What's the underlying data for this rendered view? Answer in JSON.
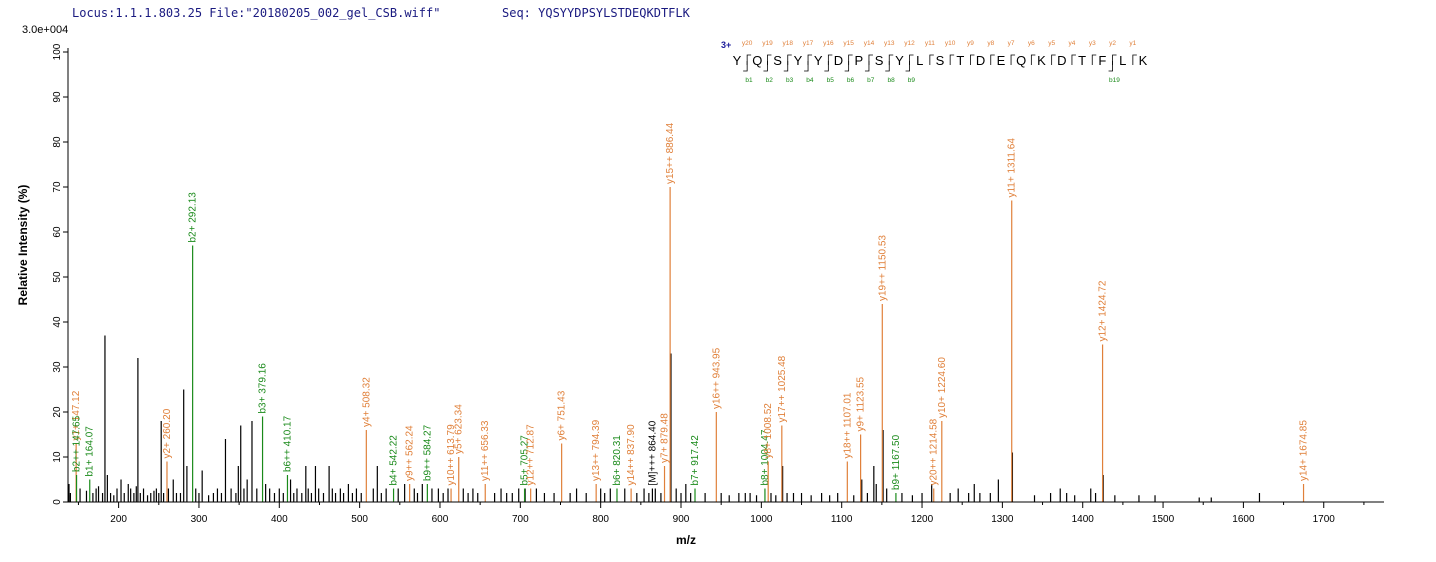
{
  "header": {
    "locus": "Locus:1.1.1.803.25 File:\"20180205_002_gel_CSB.wiff\"",
    "sequence_label": "Seq: YQSYYDPSYLSTDEQKDTFLK",
    "scale": "3.0e+004"
  },
  "colors": {
    "y_ion": "#e0803a",
    "b_ion": "#1a8a1a",
    "other": "#000000",
    "header": "#1a1a80",
    "charge": "#1a1a9a"
  },
  "chart_data": {
    "type": "bar",
    "xlabel": "m/z",
    "ylabel": "Relative   Intensity (%)",
    "xlim": [
      137,
      1775
    ],
    "ylim": [
      0,
      100
    ],
    "x_ticks": [
      200,
      300,
      400,
      500,
      600,
      700,
      800,
      900,
      1000,
      1100,
      1200,
      1300,
      1400,
      1500,
      1600,
      1700
    ],
    "y_ticks": [
      0,
      10,
      20,
      30,
      40,
      50,
      60,
      70,
      80,
      90,
      100
    ],
    "peptide": {
      "charge": "3+",
      "residues": [
        "Y",
        "Q",
        "S",
        "Y",
        "Y",
        "D",
        "P",
        "S",
        "Y",
        "L",
        "S",
        "T",
        "D",
        "E",
        "Q",
        "K",
        "D",
        "T",
        "F",
        "L",
        "K"
      ],
      "y_labels": [
        "y20",
        "y19",
        "y18",
        "y17",
        "y16",
        "y15",
        "y14",
        "y13",
        "y12",
        "y11",
        "y10",
        "y9",
        "y8",
        "y7",
        "y6",
        "y5",
        "y4",
        "y3",
        "y2",
        "y1"
      ],
      "b_labels": [
        "b1",
        "b2",
        "b3",
        "b4",
        "b5",
        "b6",
        "b7",
        "b8",
        "b9",
        "b19"
      ],
      "b_positions": [
        1,
        2,
        3,
        4,
        5,
        6,
        7,
        8,
        9,
        19
      ]
    },
    "peaks": [
      {
        "mz": 120,
        "i": 2
      },
      {
        "mz": 125,
        "i": 1.5
      },
      {
        "mz": 132,
        "i": 4
      },
      {
        "mz": 140,
        "i": 2
      },
      {
        "mz": 152,
        "i": 3
      },
      {
        "mz": 160,
        "i": 2.5
      },
      {
        "mz": 168,
        "i": 2
      },
      {
        "mz": 172,
        "i": 3
      },
      {
        "mz": 175,
        "i": 3.5
      },
      {
        "mz": 180,
        "i": 2
      },
      {
        "mz": 183,
        "i": 37
      },
      {
        "mz": 186,
        "i": 6
      },
      {
        "mz": 190,
        "i": 2
      },
      {
        "mz": 194,
        "i": 1.5
      },
      {
        "mz": 198,
        "i": 3
      },
      {
        "mz": 203,
        "i": 5
      },
      {
        "mz": 207,
        "i": 2
      },
      {
        "mz": 212,
        "i": 4
      },
      {
        "mz": 215,
        "i": 3
      },
      {
        "mz": 219,
        "i": 2
      },
      {
        "mz": 222,
        "i": 3.5
      },
      {
        "mz": 224,
        "i": 32
      },
      {
        "mz": 227,
        "i": 2
      },
      {
        "mz": 231,
        "i": 3
      },
      {
        "mz": 236,
        "i": 1.5
      },
      {
        "mz": 240,
        "i": 2
      },
      {
        "mz": 244,
        "i": 2.5
      },
      {
        "mz": 247,
        "i": 3
      },
      {
        "mz": 250,
        "i": 2
      },
      {
        "mz": 253,
        "i": 18
      },
      {
        "mz": 256,
        "i": 2
      },
      {
        "mz": 262,
        "i": 3
      },
      {
        "mz": 268,
        "i": 5
      },
      {
        "mz": 272,
        "i": 2
      },
      {
        "mz": 277,
        "i": 2
      },
      {
        "mz": 281,
        "i": 25
      },
      {
        "mz": 285,
        "i": 8
      },
      {
        "mz": 296,
        "i": 3
      },
      {
        "mz": 300,
        "i": 2
      },
      {
        "mz": 304,
        "i": 7
      },
      {
        "mz": 312,
        "i": 1.5
      },
      {
        "mz": 318,
        "i": 2
      },
      {
        "mz": 323,
        "i": 3
      },
      {
        "mz": 328,
        "i": 2
      },
      {
        "mz": 333,
        "i": 14
      },
      {
        "mz": 340,
        "i": 3
      },
      {
        "mz": 346,
        "i": 2
      },
      {
        "mz": 349,
        "i": 8
      },
      {
        "mz": 352,
        "i": 17
      },
      {
        "mz": 356,
        "i": 3
      },
      {
        "mz": 360,
        "i": 5
      },
      {
        "mz": 366,
        "i": 18
      },
      {
        "mz": 372,
        "i": 3
      },
      {
        "mz": 383,
        "i": 4
      },
      {
        "mz": 388,
        "i": 3
      },
      {
        "mz": 394,
        "i": 2
      },
      {
        "mz": 400,
        "i": 3
      },
      {
        "mz": 405,
        "i": 2
      },
      {
        "mz": 414,
        "i": 5
      },
      {
        "mz": 418,
        "i": 2
      },
      {
        "mz": 422,
        "i": 3
      },
      {
        "mz": 428,
        "i": 2
      },
      {
        "mz": 433,
        "i": 8
      },
      {
        "mz": 436,
        "i": 3
      },
      {
        "mz": 440,
        "i": 2
      },
      {
        "mz": 445,
        "i": 8
      },
      {
        "mz": 449,
        "i": 3
      },
      {
        "mz": 455,
        "i": 2
      },
      {
        "mz": 462,
        "i": 8
      },
      {
        "mz": 466,
        "i": 3
      },
      {
        "mz": 470,
        "i": 2
      },
      {
        "mz": 476,
        "i": 3
      },
      {
        "mz": 480,
        "i": 2
      },
      {
        "mz": 486,
        "i": 4
      },
      {
        "mz": 491,
        "i": 2
      },
      {
        "mz": 496,
        "i": 3
      },
      {
        "mz": 502,
        "i": 2
      },
      {
        "mz": 517,
        "i": 3
      },
      {
        "mz": 522,
        "i": 8
      },
      {
        "mz": 527,
        "i": 2
      },
      {
        "mz": 533,
        "i": 3
      },
      {
        "mz": 548,
        "i": 3
      },
      {
        "mz": 556,
        "i": 4
      },
      {
        "mz": 568,
        "i": 3
      },
      {
        "mz": 572,
        "i": 2
      },
      {
        "mz": 578,
        "i": 4
      },
      {
        "mz": 590,
        "i": 3
      },
      {
        "mz": 598,
        "i": 3
      },
      {
        "mz": 604,
        "i": 2
      },
      {
        "mz": 610,
        "i": 3
      },
      {
        "mz": 629,
        "i": 3
      },
      {
        "mz": 635,
        "i": 2
      },
      {
        "mz": 641,
        "i": 3
      },
      {
        "mz": 647,
        "i": 2
      },
      {
        "mz": 668,
        "i": 2
      },
      {
        "mz": 676,
        "i": 3
      },
      {
        "mz": 683,
        "i": 2
      },
      {
        "mz": 690,
        "i": 2
      },
      {
        "mz": 698,
        "i": 3
      },
      {
        "mz": 706,
        "i": 3
      },
      {
        "mz": 720,
        "i": 3
      },
      {
        "mz": 730,
        "i": 2
      },
      {
        "mz": 742,
        "i": 2
      },
      {
        "mz": 762,
        "i": 2
      },
      {
        "mz": 770,
        "i": 3
      },
      {
        "mz": 782,
        "i": 2
      },
      {
        "mz": 800,
        "i": 3
      },
      {
        "mz": 805,
        "i": 2
      },
      {
        "mz": 812,
        "i": 3
      },
      {
        "mz": 830,
        "i": 3
      },
      {
        "mz": 845,
        "i": 2
      },
      {
        "mz": 854,
        "i": 3
      },
      {
        "mz": 860,
        "i": 2
      },
      {
        "mz": 868,
        "i": 3
      },
      {
        "mz": 875,
        "i": 2
      },
      {
        "mz": 887.5,
        "i": 33
      },
      {
        "mz": 894,
        "i": 3
      },
      {
        "mz": 900,
        "i": 2
      },
      {
        "mz": 906,
        "i": 4
      },
      {
        "mz": 912,
        "i": 2
      },
      {
        "mz": 930,
        "i": 2
      },
      {
        "mz": 950,
        "i": 2
      },
      {
        "mz": 960,
        "i": 1.5
      },
      {
        "mz": 972,
        "i": 2
      },
      {
        "mz": 980,
        "i": 2
      },
      {
        "mz": 986,
        "i": 2
      },
      {
        "mz": 994,
        "i": 1.5
      },
      {
        "mz": 1012,
        "i": 2
      },
      {
        "mz": 1018,
        "i": 1.5
      },
      {
        "mz": 1026.5,
        "i": 8
      },
      {
        "mz": 1032,
        "i": 2
      },
      {
        "mz": 1040,
        "i": 2
      },
      {
        "mz": 1050,
        "i": 2
      },
      {
        "mz": 1062,
        "i": 1.5
      },
      {
        "mz": 1075,
        "i": 2
      },
      {
        "mz": 1085,
        "i": 1.5
      },
      {
        "mz": 1095,
        "i": 2
      },
      {
        "mz": 1115,
        "i": 1.5
      },
      {
        "mz": 1125,
        "i": 5
      },
      {
        "mz": 1132,
        "i": 2
      },
      {
        "mz": 1140,
        "i": 8
      },
      {
        "mz": 1143,
        "i": 4
      },
      {
        "mz": 1151.5,
        "i": 16
      },
      {
        "mz": 1156,
        "i": 3
      },
      {
        "mz": 1175,
        "i": 2
      },
      {
        "mz": 1188,
        "i": 1.5
      },
      {
        "mz": 1200,
        "i": 2
      },
      {
        "mz": 1212,
        "i": 4
      },
      {
        "mz": 1235,
        "i": 2
      },
      {
        "mz": 1245,
        "i": 3
      },
      {
        "mz": 1258,
        "i": 2
      },
      {
        "mz": 1265,
        "i": 4
      },
      {
        "mz": 1272,
        "i": 2
      },
      {
        "mz": 1285,
        "i": 2
      },
      {
        "mz": 1295,
        "i": 5
      },
      {
        "mz": 1312.5,
        "i": 11
      },
      {
        "mz": 1340,
        "i": 1.5
      },
      {
        "mz": 1360,
        "i": 2
      },
      {
        "mz": 1372,
        "i": 3
      },
      {
        "mz": 1380,
        "i": 2
      },
      {
        "mz": 1390,
        "i": 1.5
      },
      {
        "mz": 1410,
        "i": 3
      },
      {
        "mz": 1416,
        "i": 2
      },
      {
        "mz": 1425.5,
        "i": 6
      },
      {
        "mz": 1440,
        "i": 1.5
      },
      {
        "mz": 1470,
        "i": 1.5
      },
      {
        "mz": 1490,
        "i": 1.5
      },
      {
        "mz": 1545,
        "i": 1
      },
      {
        "mz": 1560,
        "i": 1
      },
      {
        "mz": 1620,
        "i": 2
      }
    ],
    "annotated_peaks": [
      {
        "mz": 147.12,
        "i": 13,
        "label": "y1+ 147.12",
        "ion": "y"
      },
      {
        "mz": 147.65,
        "i": 6,
        "label": "b2++ 147.65",
        "ion": "b"
      },
      {
        "mz": 164.07,
        "i": 5,
        "label": "b1+ 164.07",
        "ion": "b"
      },
      {
        "mz": 260.2,
        "i": 9,
        "label": "y2+ 260.20",
        "ion": "y"
      },
      {
        "mz": 292.13,
        "i": 57,
        "label": "b2+ 292.13",
        "ion": "b"
      },
      {
        "mz": 379.16,
        "i": 19,
        "label": "b3+ 379.16",
        "ion": "b"
      },
      {
        "mz": 410.17,
        "i": 6,
        "label": "b6++ 410.17",
        "ion": "b"
      },
      {
        "mz": 508.32,
        "i": 16,
        "label": "y4+ 508.32",
        "ion": "y"
      },
      {
        "mz": 542.22,
        "i": 3,
        "label": "b4+ 542.22",
        "ion": "b"
      },
      {
        "mz": 562.24,
        "i": 4,
        "label": "y9++ 562.24",
        "ion": "y"
      },
      {
        "mz": 584.27,
        "i": 4,
        "label": "b9++ 584.27",
        "ion": "b"
      },
      {
        "mz": 613.79,
        "i": 3,
        "label": "y10++ 613.79",
        "ion": "y"
      },
      {
        "mz": 623.34,
        "i": 10,
        "label": "y5+ 623.34",
        "ion": "y"
      },
      {
        "mz": 656.33,
        "i": 4,
        "label": "y11++ 656.33",
        "ion": "y"
      },
      {
        "mz": 705.27,
        "i": 3,
        "label": "b5+ 705.27",
        "ion": "b"
      },
      {
        "mz": 712.87,
        "i": 3,
        "label": "y12++ 712.87",
        "ion": "y"
      },
      {
        "mz": 751.43,
        "i": 13,
        "label": "y6+ 751.43",
        "ion": "y"
      },
      {
        "mz": 794.39,
        "i": 4,
        "label": "y13++ 794.39",
        "ion": "y"
      },
      {
        "mz": 820.31,
        "i": 3,
        "label": "b6+ 820.31",
        "ion": "b"
      },
      {
        "mz": 837.9,
        "i": 3,
        "label": "y14++ 837.90",
        "ion": "y"
      },
      {
        "mz": 864.4,
        "i": 3,
        "label": "[M]+++ 864.40",
        "ion": "other"
      },
      {
        "mz": 879.48,
        "i": 8,
        "label": "y7+ 879.48",
        "ion": "y"
      },
      {
        "mz": 886.44,
        "i": 70,
        "label": "y15++ 886.44",
        "ion": "y"
      },
      {
        "mz": 917.42,
        "i": 3,
        "label": "b7+ 917.42",
        "ion": "b"
      },
      {
        "mz": 943.95,
        "i": 20,
        "label": "y16++ 943.95",
        "ion": "y"
      },
      {
        "mz": 1004.47,
        "i": 3,
        "label": "b8+ 1004.47",
        "ion": "b"
      },
      {
        "mz": 1008.52,
        "i": 9,
        "label": "y8+ 1008.52",
        "ion": "y"
      },
      {
        "mz": 1025.48,
        "i": 17,
        "label": "y17++ 1025.48",
        "ion": "y"
      },
      {
        "mz": 1107.01,
        "i": 9,
        "label": "y18++ 1107.01",
        "ion": "y"
      },
      {
        "mz": 1123.55,
        "i": 15,
        "label": "y9+ 1123.55",
        "ion": "y"
      },
      {
        "mz": 1150.53,
        "i": 44,
        "label": "y19++ 1150.53",
        "ion": "y"
      },
      {
        "mz": 1167.5,
        "i": 2,
        "label": "b9+ 1167.50",
        "ion": "b"
      },
      {
        "mz": 1214.58,
        "i": 3,
        "label": "y20++ 1214.58",
        "ion": "y"
      },
      {
        "mz": 1224.6,
        "i": 18,
        "label": "y10+ 1224.60",
        "ion": "y"
      },
      {
        "mz": 1311.64,
        "i": 67,
        "label": "y11+ 1311.64",
        "ion": "y"
      },
      {
        "mz": 1424.72,
        "i": 35,
        "label": "y12+ 1424.72",
        "ion": "y"
      },
      {
        "mz": 1674.85,
        "i": 4,
        "label": "y14+ 1674.85",
        "ion": "y"
      }
    ]
  }
}
